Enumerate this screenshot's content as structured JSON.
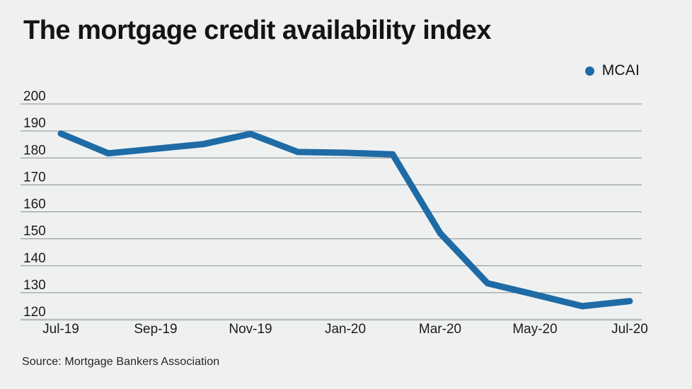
{
  "title": "The mortgage credit availability index",
  "legend": {
    "label": "MCAI"
  },
  "source": "Source: Mortgage Bankers Association",
  "colors": {
    "background": "#eff1f1",
    "line": "#1e6ba6",
    "gridline": "#888c8e",
    "axis": "#b8bbbd",
    "text": "#1b1b1b"
  },
  "chart_data": {
    "type": "line",
    "title": "The mortgage credit availability index",
    "x": [
      "Jul-19",
      "Aug-19",
      "Sep-19",
      "Oct-19",
      "Nov-19",
      "Dec-19",
      "Jan-20",
      "Feb-20",
      "Mar-20",
      "Apr-20",
      "May-20",
      "Jun-20",
      "Jul-20"
    ],
    "x_tick_labels": [
      "Jul-19",
      "Sep-19",
      "Nov-19",
      "Jan-20",
      "Mar-20",
      "May-20",
      "Jul-20"
    ],
    "series": [
      {
        "name": "MCAI",
        "values": [
          189.0,
          181.7,
          183.4,
          185.1,
          188.9,
          182.2,
          181.9,
          181.3,
          152.1,
          133.5,
          129.3,
          125.0,
          126.9
        ]
      }
    ],
    "y_ticks": [
      120,
      130,
      140,
      150,
      160,
      170,
      180,
      190,
      200
    ],
    "ylim": [
      120,
      200
    ],
    "xlabel": "",
    "ylabel": "",
    "grid": "horizontal",
    "legend_position": "top-right",
    "source": "Source: Mortgage Bankers Association"
  }
}
